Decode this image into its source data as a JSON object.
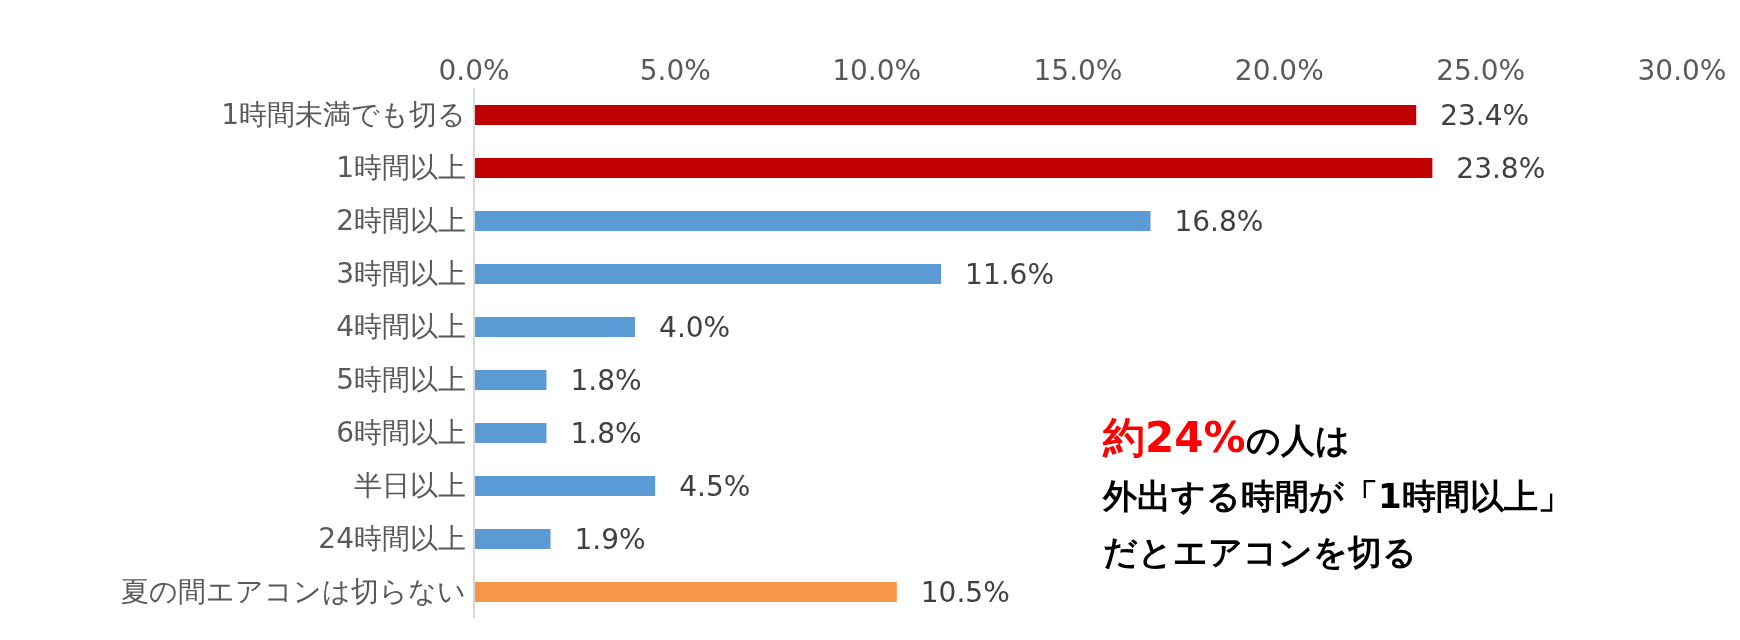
{
  "chart_data": {
    "type": "bar",
    "orientation": "horizontal",
    "categories": [
      "1時間未満でも切る",
      "1時間以上",
      "2時間以上",
      "3時間以上",
      "4時間以上",
      "5時間以上",
      "6時間以上",
      "半日以上",
      "24時間以上",
      "夏の間エアコンは切らない"
    ],
    "values": [
      23.4,
      23.8,
      16.8,
      11.6,
      4.0,
      1.8,
      1.8,
      4.5,
      1.9,
      10.5
    ],
    "colors": [
      "#c00000",
      "#c00000",
      "#5b9bd5",
      "#5b9bd5",
      "#5b9bd5",
      "#5b9bd5",
      "#5b9bd5",
      "#5b9bd5",
      "#5b9bd5",
      "#f79646"
    ],
    "value_labels": [
      "23.4%",
      "23.8%",
      "16.8%",
      "11.6%",
      "4.0%",
      "1.8%",
      "1.8%",
      "4.5%",
      "1.9%",
      "10.5%"
    ],
    "xlim": [
      0,
      30
    ],
    "xticks": [
      {
        "value": 0,
        "label": "0.0%"
      },
      {
        "value": 5,
        "label": "5.0%"
      },
      {
        "value": 10,
        "label": "10.0%"
      },
      {
        "value": 15,
        "label": "15.0%"
      },
      {
        "value": 20,
        "label": "20.0%"
      },
      {
        "value": 25,
        "label": "25.0%"
      },
      {
        "value": 30,
        "label": "30.0%"
      }
    ],
    "grid": false,
    "annotations": [
      "約24%の人は",
      "外出する時間が「1時間以上」",
      "だとエアコンを切る"
    ]
  }
}
